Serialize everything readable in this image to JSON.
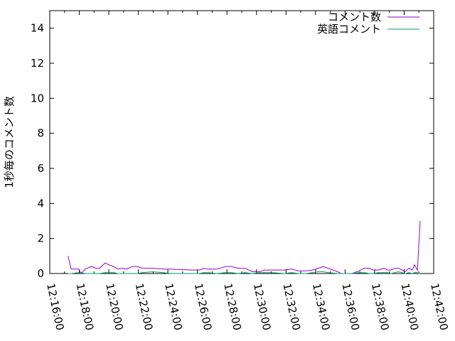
{
  "chart_data": {
    "type": "line",
    "title": "",
    "xlabel": "",
    "ylabel": "1秒毎のコメント数",
    "ylim": [
      0,
      15
    ],
    "xlim": [
      "12:16:00",
      "12:42:00"
    ],
    "yticks": [
      "0",
      "2",
      "4",
      "6",
      "8",
      "10",
      "12",
      "14"
    ],
    "xticks": [
      "12:16:00",
      "12:18:00",
      "12:20:00",
      "12:22:00",
      "12:24:00",
      "12:26:00",
      "12:28:00",
      "12:30:00",
      "12:32:00",
      "12:34:00",
      "12:36:00",
      "12:38:00",
      "12:40:00",
      "12:42:00"
    ],
    "grid": false,
    "legend": "top-right",
    "x": [
      "12:17:14",
      "12:17:27",
      "12:17:58",
      "12:18:07",
      "12:18:24",
      "12:18:48",
      "12:19:08",
      "12:19:22",
      "12:19:45",
      "12:20:00",
      "12:20:20",
      "12:20:37",
      "12:20:55",
      "12:21:12",
      "12:21:35",
      "12:21:55",
      "12:22:16",
      "12:22:59",
      "12:23:42",
      "12:24:11",
      "12:25:38",
      "12:26:07",
      "12:26:27",
      "12:26:41",
      "12:27:19",
      "12:27:54",
      "12:28:17",
      "12:28:46",
      "12:29:14",
      "12:29:43",
      "12:30:12",
      "12:30:32",
      "12:31:01",
      "12:31:53",
      "12:32:22",
      "12:32:51",
      "12:33:20",
      "12:33:49",
      "12:34:09",
      "12:34:32",
      "12:34:52",
      "12:35:30",
      "12:35:44",
      "12:36:28",
      "12:36:57",
      "12:37:17",
      "12:37:40",
      "12:37:54",
      "12:38:15",
      "12:38:38",
      "12:38:52",
      "12:39:07",
      "12:39:21",
      "12:39:36",
      "12:39:53",
      "12:40:04",
      "12:40:19",
      "12:40:33",
      "12:40:42",
      "12:40:54",
      "12:40:59",
      "12:41:05"
    ],
    "series": [
      {
        "name": "コメント数",
        "color": "#9400d3",
        "values": [
          1.0,
          0.25,
          0.25,
          0.0,
          0.25,
          0.4,
          0.3,
          0.3,
          0.6,
          0.5,
          0.4,
          0.25,
          0.3,
          0.25,
          0.4,
          0.4,
          0.3,
          0.3,
          0.25,
          0.25,
          0.2,
          0.2,
          0.3,
          0.25,
          0.25,
          0.4,
          0.4,
          0.3,
          0.3,
          0.1,
          0.1,
          0.2,
          0.2,
          0.2,
          0.25,
          0.15,
          0.15,
          0.2,
          0.3,
          0.4,
          0.3,
          0.1,
          0.0,
          0.0,
          0.15,
          0.3,
          0.3,
          0.2,
          0.2,
          0.3,
          0.2,
          0.2,
          0.3,
          0.3,
          0.2,
          0.1,
          0.3,
          0.2,
          0.5,
          0.2,
          1.5,
          3.0
        ]
      },
      {
        "name": "英語コメント",
        "color": "#009e73",
        "values": [
          0,
          0,
          0.05,
          0.05,
          0,
          0,
          0,
          0,
          0.05,
          0.05,
          0.05,
          0,
          0,
          0,
          0,
          0,
          0.05,
          0.1,
          0.05,
          0,
          0,
          0,
          0.05,
          0.05,
          0,
          0.05,
          0.05,
          0,
          0.05,
          0,
          0.05,
          0.05,
          0.05,
          0,
          0.05,
          0,
          0,
          0.05,
          0.1,
          0.1,
          0.05,
          0,
          0,
          0,
          0.05,
          0.05,
          0,
          0,
          0.05,
          0.05,
          0.05,
          0,
          0.05,
          0.1,
          0.05,
          0,
          0.05,
          0,
          0.05,
          0.05,
          0,
          0
        ]
      }
    ]
  }
}
